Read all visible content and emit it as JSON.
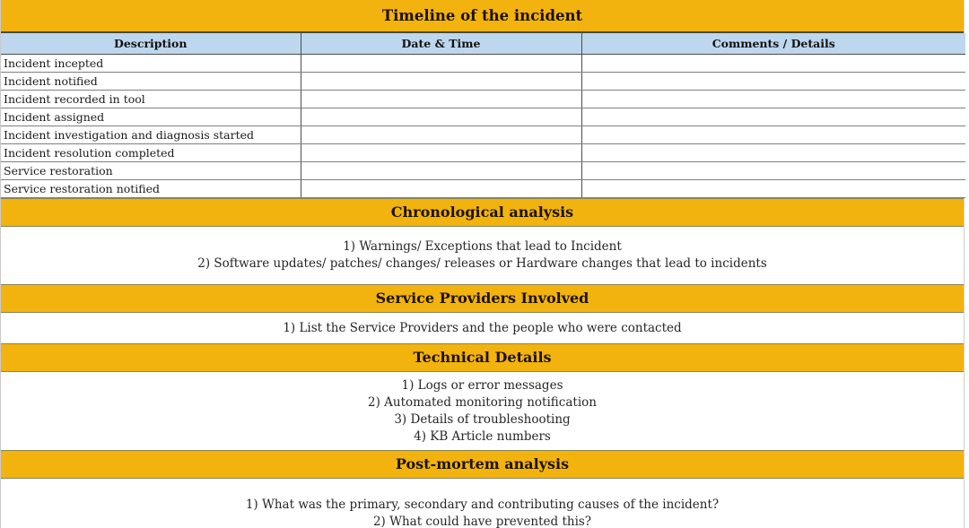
{
  "colors": {
    "gold": "#F2B30E",
    "header_blue": "#BDD7EE",
    "text": "#1A1A1A"
  },
  "timeline": {
    "title": "Timeline of the incident",
    "table": {
      "headers": [
        "Description",
        "Date & Time",
        "Comments / Details"
      ],
      "rows": [
        [
          "Incident incepted",
          "",
          ""
        ],
        [
          "Incident notified",
          "",
          ""
        ],
        [
          "Incident recorded in tool",
          "",
          ""
        ],
        [
          "Incident assigned",
          "",
          ""
        ],
        [
          "Incident investigation and diagnosis started",
          "",
          ""
        ],
        [
          "Incident resolution completed",
          "",
          ""
        ],
        [
          "Service restoration",
          "",
          ""
        ],
        [
          "Service restoration notified",
          "",
          ""
        ]
      ]
    }
  },
  "chronological": {
    "title": "Chronological analysis",
    "lines": [
      "1) Warnings/ Exceptions that lead to Incident",
      "2) Software updates/ patches/ changes/ releases or Hardware changes that lead to incidents"
    ]
  },
  "service_providers": {
    "title": "Service Providers Involved",
    "lines": [
      "1) List the Service Providers and the people who were contacted"
    ]
  },
  "technical_details": {
    "title": "Technical Details",
    "lines": [
      "1) Logs or error messages",
      "2) Automated monitoring notification",
      "3) Details of troubleshooting",
      "4) KB Article numbers"
    ]
  },
  "post_mortem": {
    "title": "Post-mortem analysis",
    "lines": [
      "1) What was the primary, secondary and contributing causes of the incident?",
      "2) What could have prevented this?"
    ]
  }
}
